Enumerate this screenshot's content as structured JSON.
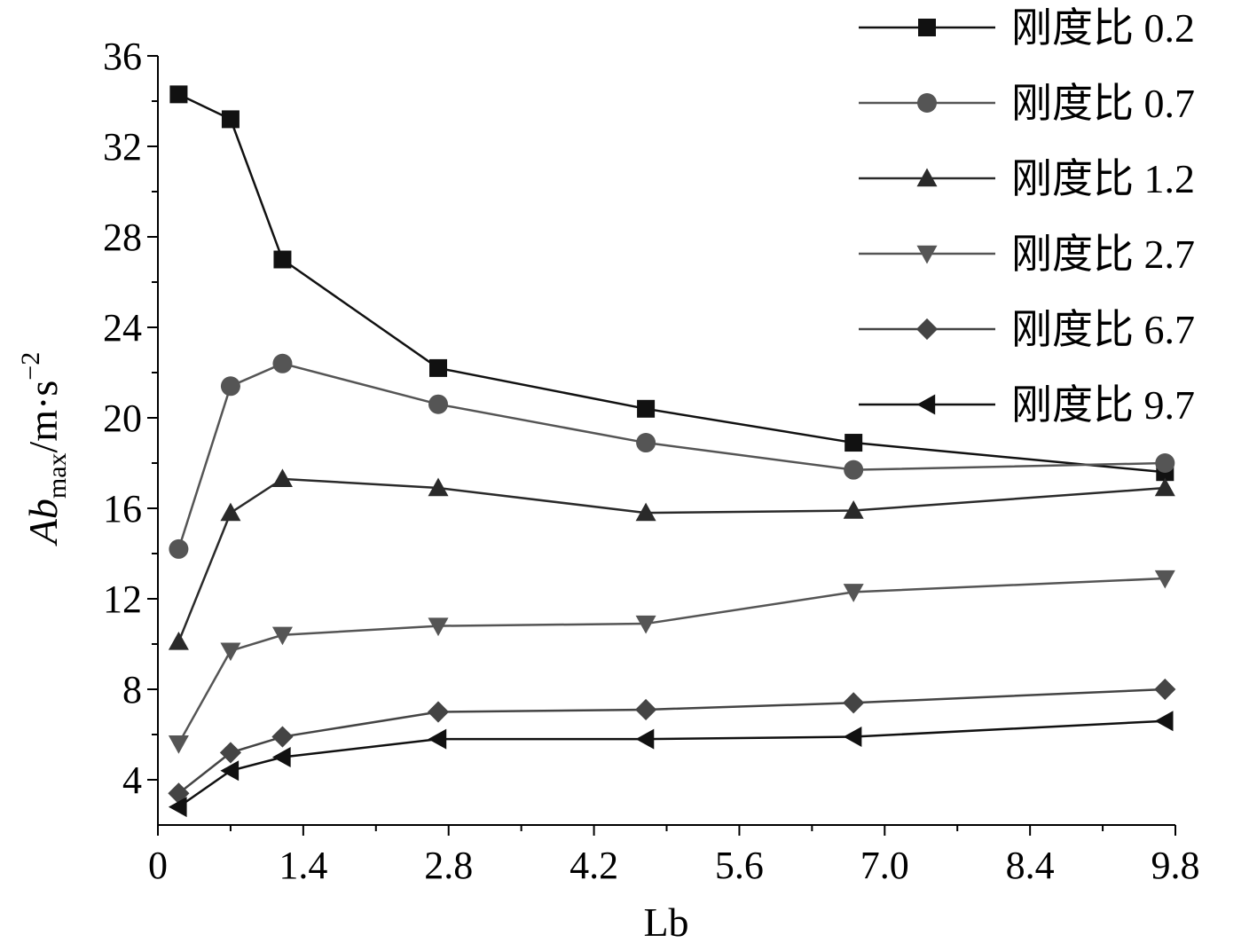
{
  "chart_data": {
    "type": "line",
    "xlabel": "Lb",
    "ylabel": {
      "main": "Ab",
      "subscript": "max",
      "unit": "/m·s",
      "superscript": "−2"
    },
    "xlim": [
      0,
      9.8
    ],
    "ylim": [
      2,
      36
    ],
    "x_ticks": [
      0,
      1.4,
      2.8,
      4.2,
      5.6,
      7.0,
      8.4,
      9.8
    ],
    "x_tick_labels": [
      "0",
      "1.4",
      "2.8",
      "4.2",
      "5.6",
      "7.0",
      "8.4",
      "9.8"
    ],
    "y_ticks": [
      4,
      8,
      12,
      16,
      20,
      24,
      28,
      32,
      36
    ],
    "y_tick_labels": [
      "4",
      "8",
      "12",
      "16",
      "20",
      "24",
      "28",
      "32",
      "36"
    ],
    "grid": false,
    "legend_position": "top-right",
    "x": [
      0.2,
      0.7,
      1.2,
      2.7,
      4.7,
      6.7,
      9.7
    ],
    "series": [
      {
        "name": "刚度比 0.2",
        "marker": "square",
        "color": "#111111",
        "values": [
          34.3,
          33.2,
          27.0,
          22.2,
          20.4,
          18.9,
          17.6
        ]
      },
      {
        "name": "刚度比 0.7",
        "marker": "circle",
        "color": "#555555",
        "values": [
          14.2,
          21.4,
          22.4,
          20.6,
          18.9,
          17.7,
          18.0
        ]
      },
      {
        "name": "刚度比 1.2",
        "marker": "triangle-up",
        "color": "#2a2a2a",
        "values": [
          10.1,
          15.8,
          17.3,
          16.9,
          15.8,
          15.9,
          16.9
        ]
      },
      {
        "name": "刚度比 2.7",
        "marker": "triangle-down",
        "color": "#555555",
        "values": [
          5.6,
          9.7,
          10.4,
          10.8,
          10.9,
          12.3,
          12.9
        ]
      },
      {
        "name": "刚度比 6.7",
        "marker": "diamond",
        "color": "#444444",
        "values": [
          3.4,
          5.2,
          5.9,
          7.0,
          7.1,
          7.4,
          8.0
        ]
      },
      {
        "name": "刚度比 9.7",
        "marker": "triangle-left",
        "color": "#111111",
        "values": [
          2.8,
          4.4,
          5.0,
          5.8,
          5.8,
          5.9,
          6.6
        ]
      }
    ]
  }
}
